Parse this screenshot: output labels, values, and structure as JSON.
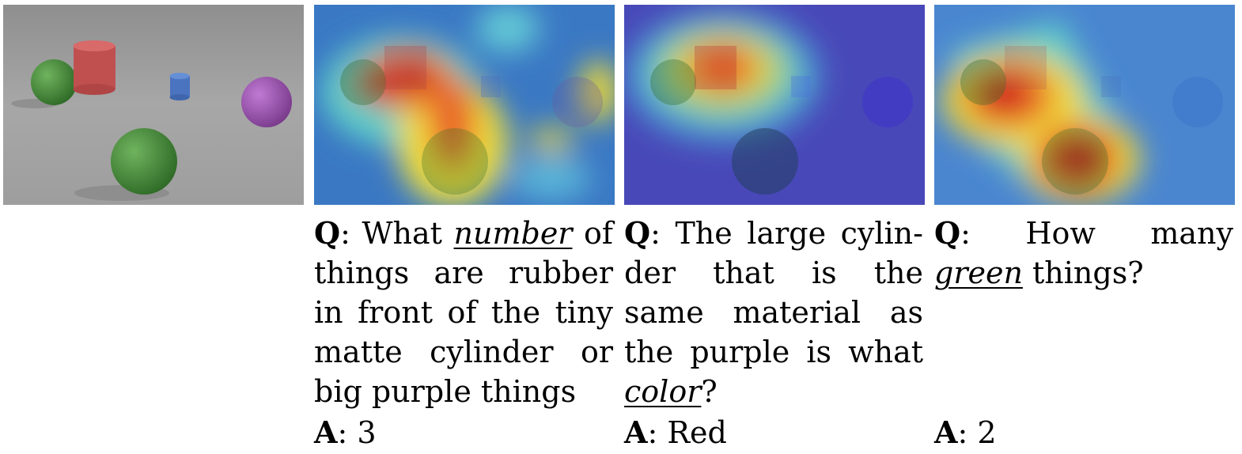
{
  "labels": {
    "q": "Q",
    "a": "A",
    "sep": ": "
  },
  "examples": [
    {
      "q_pre": "What ",
      "q_kw": "number",
      "q_post": " of things are rubber in front of the tiny matte cylinder or big purple things",
      "answer": "3"
    },
    {
      "q_pre": "The large cylin­der that is the same material as the pur­ple is what ",
      "q_kw": "color",
      "q_post": "?",
      "answer": "Red"
    },
    {
      "q_pre": "How many ",
      "q_kw": "green",
      "q_post": " things?",
      "answer": "2"
    }
  ]
}
